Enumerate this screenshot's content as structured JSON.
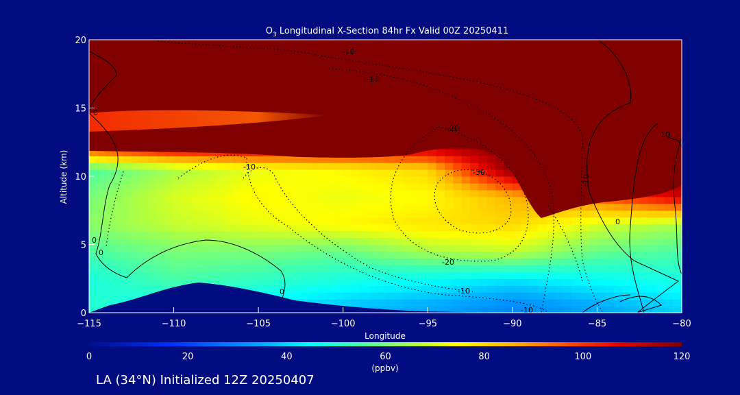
{
  "chart_data": {
    "type": "heatmap",
    "title": "O3 Longitudinal X-Section 84hr  Fx Valid 00Z 20250411",
    "title_parts": {
      "prefix": "O",
      "subscript": "3",
      "rest": " Longitudinal X-Section 84hr  Fx Valid 00Z 20250411"
    },
    "xlabel": "Longitude",
    "ylabel": "Altitude (km)",
    "xlim": [
      -115,
      -80
    ],
    "ylim": [
      0,
      20
    ],
    "x_ticks": [
      -115,
      -110,
      -105,
      -100,
      -95,
      -90,
      -85,
      -80
    ],
    "x_tick_labels": [
      "−115",
      "−110",
      "−105",
      "−100",
      "−95",
      "−90",
      "−85",
      "−80"
    ],
    "y_ticks": [
      0,
      5,
      10,
      15,
      20
    ],
    "y_tick_labels": [
      "0",
      "5",
      "10",
      "15",
      "20"
    ],
    "colorbar": {
      "min": 0,
      "max": 120,
      "units": "(ppbv)",
      "ticks": [
        0,
        20,
        40,
        60,
        80,
        100,
        120
      ],
      "tick_labels": [
        "0",
        "20",
        "40",
        "60",
        "80",
        "100",
        "120"
      ]
    },
    "ozone_field_ppbv": {
      "x": [
        -115,
        -110,
        -105,
        -100,
        -95,
        -90,
        -85,
        -80
      ],
      "y": [
        0.5,
        2.5,
        4.5,
        6.5,
        8.5,
        10.5,
        12.5,
        14.5,
        16.5,
        18.5
      ],
      "z": [
        [
          50,
          45,
          42,
          38,
          35,
          30,
          35,
          40
        ],
        [
          48,
          55,
          52,
          48,
          45,
          42,
          45,
          48
        ],
        [
          55,
          60,
          60,
          58,
          65,
          68,
          58,
          55
        ],
        [
          62,
          68,
          72,
          75,
          78,
          80,
          70,
          65
        ],
        [
          60,
          70,
          75,
          72,
          74,
          85,
          95,
          110
        ],
        [
          55,
          65,
          72,
          75,
          80,
          120,
          120,
          120
        ],
        [
          110,
          120,
          120,
          120,
          120,
          120,
          120,
          120
        ],
        [
          105,
          112,
          115,
          120,
          120,
          120,
          120,
          120
        ],
        [
          120,
          120,
          120,
          120,
          120,
          120,
          120,
          120
        ],
        [
          120,
          120,
          120,
          120,
          120,
          120,
          120,
          120
        ]
      ]
    },
    "contour_labels": [
      "-10",
      "-10",
      "-10",
      "-20",
      "-30",
      "-20",
      "-10",
      "-10",
      "-10",
      "0",
      "0",
      "0",
      "0",
      "0",
      "10"
    ],
    "caption": "LA (34°N) Initialized 12Z 20250407",
    "colors": {
      "background": "#000c80",
      "stratosphere": "#800000",
      "terrain": "#000c80",
      "text": "#ffffff"
    }
  }
}
